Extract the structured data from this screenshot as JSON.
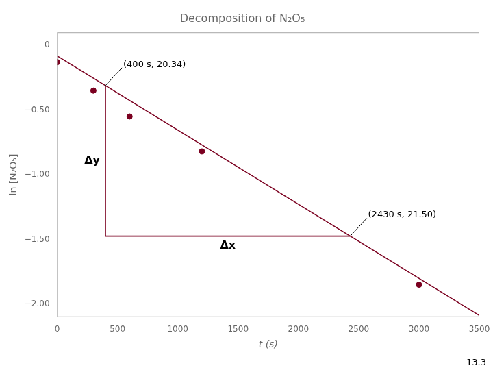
{
  "chart_data": {
    "type": "scatter",
    "title": "Decomposition of N₂O₅",
    "xlabel": "t (s)",
    "ylabel": "ln [N₂O₅]",
    "xlim": [
      0,
      3500
    ],
    "ylim": [
      -2.1,
      0.1
    ],
    "xticks": [
      0,
      500,
      1000,
      1500,
      2000,
      2500,
      3000,
      3500
    ],
    "yticks": [
      0,
      {
        "value": -0.5,
        "label": "−0.50"
      },
      {
        "value": -1.0,
        "label": "−1.00"
      },
      {
        "value": -1.5,
        "label": "−1.50"
      },
      {
        "value": -2.0,
        "label": "−2.00"
      }
    ],
    "grid": false,
    "series": [
      {
        "type": "line",
        "color": "#7b0020",
        "x": [
          0,
          3500
        ],
        "values": [
          -0.082,
          -2.0875
        ]
      },
      {
        "type": "scatter",
        "color": "#7b0020",
        "marker": "circle",
        "x": [
          0,
          300,
          600,
          1200,
          3000
        ],
        "values": [
          -0.13,
          -0.35,
          -0.55,
          -0.82,
          -1.85
        ]
      },
      {
        "type": "line",
        "color": "#7b0020",
        "x": [
          400,
          400
        ],
        "values": [
          -0.3112,
          -1.47439
        ]
      },
      {
        "type": "line",
        "color": "#7b0020",
        "x": [
          400,
          2430
        ],
        "values": [
          -1.47439,
          -1.47439
        ]
      }
    ],
    "annotations": [
      {
        "text": "(400 s, 20.34)",
        "x": 400,
        "y": -0.3112,
        "connector": true
      },
      {
        "text": "(2430 s, 21.50)",
        "x": 2430,
        "y": -1.47439,
        "connector": true
      },
      {
        "text": "Δy",
        "x": 400,
        "y": -0.892795,
        "align": "left"
      },
      {
        "text": "Δx",
        "x": 1415,
        "y": -1.47439,
        "align": "below"
      }
    ],
    "caption": "13.3"
  }
}
